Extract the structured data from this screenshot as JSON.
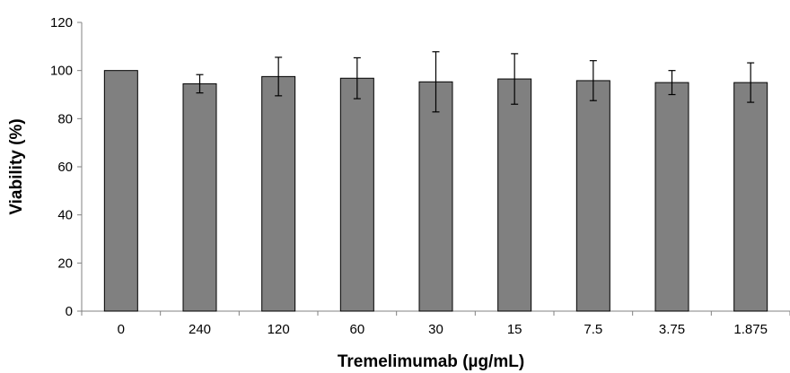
{
  "chart_data": {
    "type": "bar",
    "categories": [
      "0",
      "240",
      "120",
      "60",
      "30",
      "15",
      "7.5",
      "3.75",
      "1.875"
    ],
    "values": [
      100,
      94.5,
      97.5,
      96.8,
      95.3,
      96.5,
      95.8,
      95,
      95
    ],
    "error": [
      0,
      3.8,
      8,
      8.5,
      12.5,
      10.5,
      8.3,
      5,
      8.2
    ],
    "xlabel": "Tremelimumab (µg/mL)",
    "ylabel": "Viability (%)",
    "ylim": [
      0,
      120
    ],
    "yticks": [
      0,
      20,
      40,
      60,
      80,
      100,
      120
    ],
    "grid": false,
    "legend": "none",
    "bar_color": "#808080"
  }
}
